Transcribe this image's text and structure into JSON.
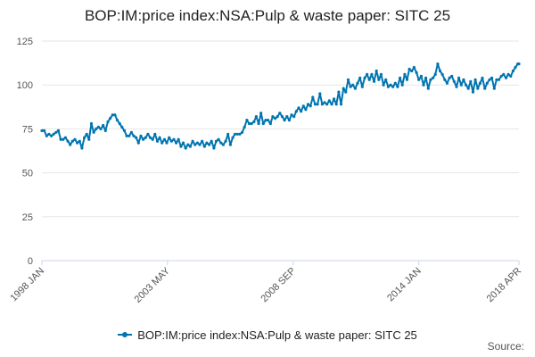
{
  "colors": {
    "series": "#0075b0",
    "grid": "#e6e6e6",
    "axis": "#ccd6eb"
  },
  "footer": {
    "source_label": "Source:"
  },
  "chart_data": {
    "type": "line",
    "title": "BOP:IM:price index:NSA:Pulp & waste paper: SITC 25",
    "xlabel": "",
    "ylabel": "",
    "ylim": [
      0,
      125
    ],
    "yticks": [
      0,
      25,
      50,
      75,
      100,
      125
    ],
    "xlim": [
      1998.0,
      2018.25
    ],
    "xtick_labels": [
      {
        "x": 1998.0,
        "label": "1998 JAN"
      },
      {
        "x": 2003.33,
        "label": "2003 MAY"
      },
      {
        "x": 2008.67,
        "label": "2008 SEP"
      },
      {
        "x": 2014.0,
        "label": "2014 JAN"
      },
      {
        "x": 2018.25,
        "label": "2018 APR"
      }
    ],
    "grid": true,
    "legend": "bottom-center",
    "series": [
      {
        "name": "BOP:IM:price index:NSA:Pulp & waste paper: SITC 25",
        "points": [
          [
            1998.0,
            74
          ],
          [
            1998.1,
            74
          ],
          [
            1998.2,
            71
          ],
          [
            1998.3,
            72
          ],
          [
            1998.4,
            71
          ],
          [
            1998.5,
            72
          ],
          [
            1998.6,
            73
          ],
          [
            1998.7,
            74
          ],
          [
            1998.8,
            69
          ],
          [
            1998.9,
            69
          ],
          [
            1999.0,
            70
          ],
          [
            1999.1,
            68
          ],
          [
            1999.2,
            66
          ],
          [
            1999.3,
            68
          ],
          [
            1999.4,
            69
          ],
          [
            1999.5,
            67
          ],
          [
            1999.6,
            68
          ],
          [
            1999.7,
            64
          ],
          [
            1999.8,
            70
          ],
          [
            1999.9,
            72
          ],
          [
            2000.0,
            69
          ],
          [
            2000.1,
            78
          ],
          [
            2000.2,
            73
          ],
          [
            2000.3,
            75
          ],
          [
            2000.4,
            76
          ],
          [
            2000.5,
            75
          ],
          [
            2000.6,
            77
          ],
          [
            2000.7,
            74
          ],
          [
            2000.8,
            79
          ],
          [
            2000.9,
            81
          ],
          [
            2001.0,
            83
          ],
          [
            2001.1,
            83
          ],
          [
            2001.2,
            80
          ],
          [
            2001.3,
            78
          ],
          [
            2001.4,
            76
          ],
          [
            2001.5,
            74
          ],
          [
            2001.6,
            71
          ],
          [
            2001.7,
            71
          ],
          [
            2001.8,
            73
          ],
          [
            2001.9,
            71
          ],
          [
            2002.0,
            70
          ],
          [
            2002.1,
            67
          ],
          [
            2002.2,
            71
          ],
          [
            2002.3,
            69
          ],
          [
            2002.4,
            70
          ],
          [
            2002.5,
            72
          ],
          [
            2002.6,
            70
          ],
          [
            2002.7,
            69
          ],
          [
            2002.8,
            72
          ],
          [
            2002.9,
            68
          ],
          [
            2003.0,
            70
          ],
          [
            2003.1,
            67
          ],
          [
            2003.2,
            69
          ],
          [
            2003.3,
            67
          ],
          [
            2003.4,
            70
          ],
          [
            2003.5,
            68
          ],
          [
            2003.6,
            69
          ],
          [
            2003.7,
            67
          ],
          [
            2003.8,
            69
          ],
          [
            2003.9,
            65
          ],
          [
            2004.0,
            67
          ],
          [
            2004.1,
            64
          ],
          [
            2004.2,
            66
          ],
          [
            2004.3,
            65
          ],
          [
            2004.4,
            68
          ],
          [
            2004.5,
            66
          ],
          [
            2004.6,
            67
          ],
          [
            2004.7,
            66
          ],
          [
            2004.8,
            68
          ],
          [
            2004.9,
            65
          ],
          [
            2005.0,
            67
          ],
          [
            2005.1,
            66
          ],
          [
            2005.2,
            68
          ],
          [
            2005.3,
            64
          ],
          [
            2005.4,
            68
          ],
          [
            2005.5,
            69
          ],
          [
            2005.6,
            67
          ],
          [
            2005.7,
            66
          ],
          [
            2005.8,
            68
          ],
          [
            2005.9,
            72
          ],
          [
            2006.0,
            66
          ],
          [
            2006.1,
            70
          ],
          [
            2006.2,
            72
          ],
          [
            2006.3,
            72
          ],
          [
            2006.4,
            72
          ],
          [
            2006.5,
            73
          ],
          [
            2006.6,
            76
          ],
          [
            2006.7,
            80
          ],
          [
            2006.8,
            78
          ],
          [
            2006.9,
            78
          ],
          [
            2007.0,
            79
          ],
          [
            2007.1,
            82
          ],
          [
            2007.2,
            78
          ],
          [
            2007.3,
            84
          ],
          [
            2007.4,
            78
          ],
          [
            2007.5,
            80
          ],
          [
            2007.6,
            80
          ],
          [
            2007.7,
            78
          ],
          [
            2007.8,
            82
          ],
          [
            2007.9,
            81
          ],
          [
            2008.0,
            82
          ],
          [
            2008.1,
            84
          ],
          [
            2008.2,
            82
          ],
          [
            2008.3,
            80
          ],
          [
            2008.4,
            82
          ],
          [
            2008.5,
            80
          ],
          [
            2008.6,
            83
          ],
          [
            2008.7,
            82
          ],
          [
            2008.8,
            85
          ],
          [
            2008.9,
            87
          ],
          [
            2009.0,
            85
          ],
          [
            2009.1,
            88
          ],
          [
            2009.2,
            86
          ],
          [
            2009.3,
            89
          ],
          [
            2009.4,
            88
          ],
          [
            2009.5,
            93
          ],
          [
            2009.6,
            89
          ],
          [
            2009.7,
            89
          ],
          [
            2009.8,
            95
          ],
          [
            2009.9,
            89
          ],
          [
            2010.0,
            90
          ],
          [
            2010.1,
            89
          ],
          [
            2010.2,
            91
          ],
          [
            2010.3,
            89
          ],
          [
            2010.4,
            92
          ],
          [
            2010.5,
            89
          ],
          [
            2010.6,
            96
          ],
          [
            2010.7,
            89
          ],
          [
            2010.8,
            98
          ],
          [
            2010.9,
            96
          ],
          [
            2011.0,
            103
          ],
          [
            2011.1,
            99
          ],
          [
            2011.2,
            100
          ],
          [
            2011.3,
            98
          ],
          [
            2011.4,
            101
          ],
          [
            2011.5,
            104
          ],
          [
            2011.6,
            99
          ],
          [
            2011.7,
            104
          ],
          [
            2011.8,
            106
          ],
          [
            2011.9,
            103
          ],
          [
            2012.0,
            106
          ],
          [
            2012.1,
            102
          ],
          [
            2012.2,
            108
          ],
          [
            2012.3,
            103
          ],
          [
            2012.4,
            106
          ],
          [
            2012.5,
            100
          ],
          [
            2012.6,
            103
          ],
          [
            2012.7,
            99
          ],
          [
            2012.8,
            100
          ],
          [
            2012.9,
            99
          ],
          [
            2013.0,
            101
          ],
          [
            2013.1,
            99
          ],
          [
            2013.2,
            104
          ],
          [
            2013.3,
            100
          ],
          [
            2013.4,
            106
          ],
          [
            2013.5,
            103
          ],
          [
            2013.6,
            109
          ],
          [
            2013.7,
            108
          ],
          [
            2013.8,
            110
          ],
          [
            2013.9,
            107
          ],
          [
            2014.0,
            103
          ],
          [
            2014.1,
            105
          ],
          [
            2014.2,
            100
          ],
          [
            2014.3,
            104
          ],
          [
            2014.4,
            98
          ],
          [
            2014.5,
            103
          ],
          [
            2014.6,
            104
          ],
          [
            2014.7,
            106
          ],
          [
            2014.8,
            112
          ],
          [
            2014.9,
            108
          ],
          [
            2015.0,
            106
          ],
          [
            2015.1,
            103
          ],
          [
            2015.2,
            101
          ],
          [
            2015.3,
            104
          ],
          [
            2015.4,
            105
          ],
          [
            2015.5,
            102
          ],
          [
            2015.6,
            99
          ],
          [
            2015.7,
            104
          ],
          [
            2015.8,
            100
          ],
          [
            2015.9,
            103
          ],
          [
            2016.0,
            100
          ],
          [
            2016.1,
            98
          ],
          [
            2016.2,
            102
          ],
          [
            2016.3,
            96
          ],
          [
            2016.4,
            103
          ],
          [
            2016.5,
            98
          ],
          [
            2016.6,
            101
          ],
          [
            2016.7,
            104
          ],
          [
            2016.8,
            98
          ],
          [
            2016.9,
            101
          ],
          [
            2017.0,
            103
          ],
          [
            2017.1,
            104
          ],
          [
            2017.2,
            98
          ],
          [
            2017.3,
            103
          ],
          [
            2017.4,
            103
          ],
          [
            2017.5,
            105
          ],
          [
            2017.6,
            106
          ],
          [
            2017.7,
            104
          ],
          [
            2017.8,
            106
          ],
          [
            2017.9,
            105
          ],
          [
            2018.0,
            108
          ],
          [
            2018.1,
            110
          ],
          [
            2018.2,
            112
          ],
          [
            2018.25,
            112
          ]
        ]
      }
    ]
  }
}
